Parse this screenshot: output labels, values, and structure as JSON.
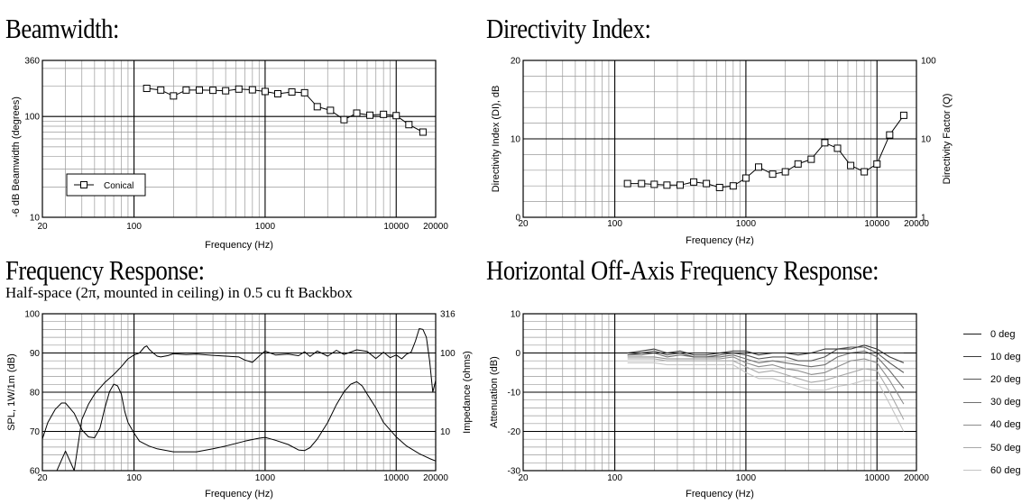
{
  "headings": {
    "beamwidth": "Beamwidth:",
    "directivity": "Directivity Index:",
    "frequency_response": "Frequency Response:",
    "frequency_response_sub": "Half-space (2π, mounted in ceiling) in 0.5 cu ft Backbox",
    "off_axis": "Horizontal Off-Axis Frequency Response:"
  },
  "chart_data": [
    {
      "id": "beamwidth",
      "type": "line",
      "title": "Beamwidth:",
      "xlabel": "Frequency (Hz)",
      "ylabel": "-6 dB Beamwidth (degrees)",
      "x_scale": "log",
      "y_scale": "log",
      "xlim": [
        20,
        20000
      ],
      "ylim": [
        10,
        360
      ],
      "x_ticks": [
        "20",
        "100",
        "1000",
        "10000",
        "20000"
      ],
      "y_ticks": [
        "360",
        "100",
        "10"
      ],
      "legend": {
        "position": "bottom-left",
        "entries": [
          "Conical"
        ]
      },
      "series": [
        {
          "name": "Conical",
          "marker": "square",
          "x": [
            125,
            160,
            200,
            250,
            315,
            400,
            500,
            630,
            800,
            1000,
            1250,
            1600,
            2000,
            2500,
            3150,
            4000,
            5000,
            6300,
            8000,
            10000,
            12500,
            16000
          ],
          "y": [
            190,
            183,
            160,
            183,
            183,
            182,
            180,
            187,
            184,
            177,
            168,
            175,
            172,
            125,
            115,
            93,
            108,
            103,
            105,
            102,
            83,
            70
          ]
        }
      ]
    },
    {
      "id": "directivity",
      "type": "line",
      "title": "Directivity Index:",
      "xlabel": "Frequency (Hz)",
      "ylabel": "Directivity Index (DI), dB",
      "y2label": "Directivity Factor (Q)",
      "x_scale": "log",
      "xlim": [
        20,
        20000
      ],
      "ylim": [
        0,
        20
      ],
      "x_ticks": [
        "20",
        "100",
        "1000",
        "10000",
        "20000"
      ],
      "y_ticks": [
        "0",
        "10",
        "20"
      ],
      "y2_ticks": [
        "1",
        "10",
        "100"
      ],
      "series": [
        {
          "marker": "square",
          "x": [
            125,
            160,
            200,
            250,
            315,
            400,
            500,
            630,
            800,
            1000,
            1250,
            1600,
            2000,
            2500,
            3150,
            4000,
            5000,
            6300,
            8000,
            10000,
            12500,
            16000
          ],
          "y": [
            4.3,
            4.3,
            4.2,
            4.1,
            4.1,
            4.5,
            4.3,
            3.8,
            4.0,
            5.0,
            6.4,
            5.5,
            5.8,
            6.8,
            7.4,
            9.5,
            8.8,
            6.6,
            5.8,
            6.8,
            10.5,
            13.0
          ]
        }
      ]
    },
    {
      "id": "frequency_response",
      "type": "line",
      "title": "Frequency Response:",
      "subtitle": "Half-space (2π, mounted in ceiling) in 0.5 cu ft Backbox",
      "xlabel": "Frequency (Hz)",
      "ylabel": "SPL, 1W/1m (dB)",
      "y2label": "Impedance (ohms)",
      "x_scale": "log",
      "xlim": [
        20,
        20000
      ],
      "ylim": [
        60,
        100
      ],
      "y2lim": [
        3.16,
        316
      ],
      "x_ticks": [
        "20",
        "100",
        "1000",
        "10000",
        "20000"
      ],
      "y_ticks": [
        "100",
        "90",
        "80",
        "70",
        "60"
      ],
      "y2_ticks": [
        "316",
        "100",
        "10"
      ],
      "series": [
        {
          "axis": "left",
          "x": [
            20,
            25,
            30,
            35,
            40,
            45,
            50,
            60,
            70,
            80,
            90,
            100,
            110,
            120,
            125,
            130,
            140,
            150,
            160,
            180,
            200,
            250,
            300,
            400,
            500,
            630,
            700,
            800,
            900,
            1000,
            1200,
            1500,
            1800,
            2000,
            2200,
            2500,
            3000,
            3500,
            4000,
            5000,
            6000,
            7000,
            8000,
            9000,
            10000,
            11000,
            12000,
            13000,
            14000,
            15000,
            16000,
            17000,
            18000,
            19000,
            20000
          ],
          "y": [
            58,
            59,
            65,
            60,
            73,
            77,
            79.5,
            82.5,
            84.5,
            86.5,
            88.5,
            89.5,
            90,
            91.5,
            91.8,
            91,
            90,
            89.2,
            89,
            89.3,
            89.8,
            89.6,
            89.7,
            89.4,
            89.2,
            89,
            88.2,
            87.6,
            89.2,
            90.5,
            89.5,
            89.7,
            89.3,
            90.3,
            89.1,
            90.5,
            89.2,
            90.7,
            89.6,
            90.8,
            90.4,
            88.6,
            90.2,
            88.8,
            89.5,
            88.5,
            89.7,
            90.2,
            93,
            96.2,
            96,
            94,
            88,
            80,
            83
          ]
        },
        {
          "axis": "right",
          "x": [
            20,
            22,
            25,
            28,
            30,
            35,
            40,
            45,
            50,
            55,
            60,
            65,
            70,
            75,
            80,
            85,
            90,
            100,
            110,
            130,
            150,
            200,
            300,
            400,
            500,
            700,
            900,
            1000,
            1200,
            1500,
            1800,
            2000,
            2200,
            2500,
            3000,
            3500,
            4000,
            4500,
            5000,
            5500,
            6000,
            7000,
            8000,
            10000,
            12000,
            15000,
            18000,
            20000
          ],
          "y": [
            8,
            13,
            19,
            23,
            23,
            17,
            10.5,
            8.5,
            8.3,
            11,
            20,
            32,
            40,
            38,
            30,
            18,
            13,
            9.5,
            7.5,
            6.5,
            6,
            5.5,
            5.5,
            6,
            6.5,
            7.5,
            8.2,
            8.4,
            7.7,
            6.8,
            5.8,
            5.7,
            6.2,
            8,
            13,
            22,
            32,
            40,
            43,
            38,
            30,
            20,
            13,
            8.5,
            6.5,
            5.2,
            4.5,
            4.2
          ]
        }
      ]
    },
    {
      "id": "off_axis",
      "type": "line",
      "title": "Horizontal Off-Axis Frequency Response:",
      "xlabel": "Frequency (Hz)",
      "ylabel": "Attenuation (dB)",
      "x_scale": "log",
      "xlim": [
        20,
        20000
      ],
      "ylim": [
        -30,
        10
      ],
      "x_ticks": [
        "20",
        "100",
        "1000",
        "10000",
        "20000"
      ],
      "y_ticks": [
        "10",
        "0",
        "-10",
        "-20",
        "-30"
      ],
      "legend": {
        "position": "right"
      },
      "x": [
        125,
        160,
        200,
        250,
        315,
        400,
        500,
        630,
        800,
        1000,
        1250,
        1600,
        2000,
        2500,
        3150,
        4000,
        5000,
        6300,
        8000,
        10000,
        12500,
        16000
      ],
      "series": [
        {
          "name": "0 deg",
          "color": "#1a1a1a",
          "values": [
            0,
            0,
            0,
            0,
            0,
            0,
            0,
            0,
            0,
            0,
            0,
            0,
            0,
            0,
            0,
            0,
            0,
            0,
            0,
            0,
            0,
            0
          ]
        },
        {
          "name": "10 deg",
          "color": "#3a3a3a",
          "values": [
            0,
            0.5,
            1,
            0,
            0.5,
            -0.5,
            -0.5,
            0,
            0.5,
            0.5,
            -0.5,
            0,
            0,
            -0.5,
            0,
            1,
            1,
            1,
            2,
            1,
            -1,
            -2.5
          ]
        },
        {
          "name": "20 deg",
          "color": "#555555",
          "values": [
            -0.5,
            0,
            0.5,
            -0.5,
            0,
            -1,
            -1,
            -0.5,
            0,
            -0.5,
            -1.5,
            -1,
            -1,
            -2,
            -2,
            -1,
            1,
            1.5,
            1.5,
            0,
            -2.5,
            -5
          ]
        },
        {
          "name": "30 deg",
          "color": "#707070",
          "values": [
            -0.5,
            -0.5,
            0,
            -1,
            -0.5,
            -1,
            -1,
            -1,
            -0.5,
            -1.5,
            -2.5,
            -2,
            -2.5,
            -3,
            -3.5,
            -3,
            -1,
            0,
            0.5,
            -1,
            -4.5,
            -9
          ]
        },
        {
          "name": "40 deg",
          "color": "#8c8c8c",
          "values": [
            -1,
            -1,
            -1,
            -1.5,
            -1.5,
            -1.5,
            -1.5,
            -1.5,
            -1,
            -2.5,
            -3.5,
            -3,
            -4,
            -4.5,
            -5.5,
            -5,
            -3.5,
            -2,
            -1.5,
            -2.5,
            -7,
            -13
          ]
        },
        {
          "name": "50 deg",
          "color": "#a8a8a8",
          "values": [
            -1.5,
            -1.5,
            -1.5,
            -2,
            -2,
            -2,
            -2,
            -2,
            -2,
            -3.5,
            -5,
            -4.5,
            -5.5,
            -6.5,
            -7.5,
            -7,
            -6,
            -5,
            -4,
            -4.5,
            -10,
            -17
          ]
        },
        {
          "name": "60 deg",
          "color": "#c4c4c4",
          "values": [
            -2.5,
            -2.5,
            -2.5,
            -3,
            -3,
            -3,
            -3,
            -3,
            -3,
            -5,
            -6.5,
            -6.5,
            -7.5,
            -8.5,
            -9.5,
            -9.5,
            -8.5,
            -8,
            -7,
            -7,
            -13,
            -20
          ]
        }
      ]
    }
  ]
}
